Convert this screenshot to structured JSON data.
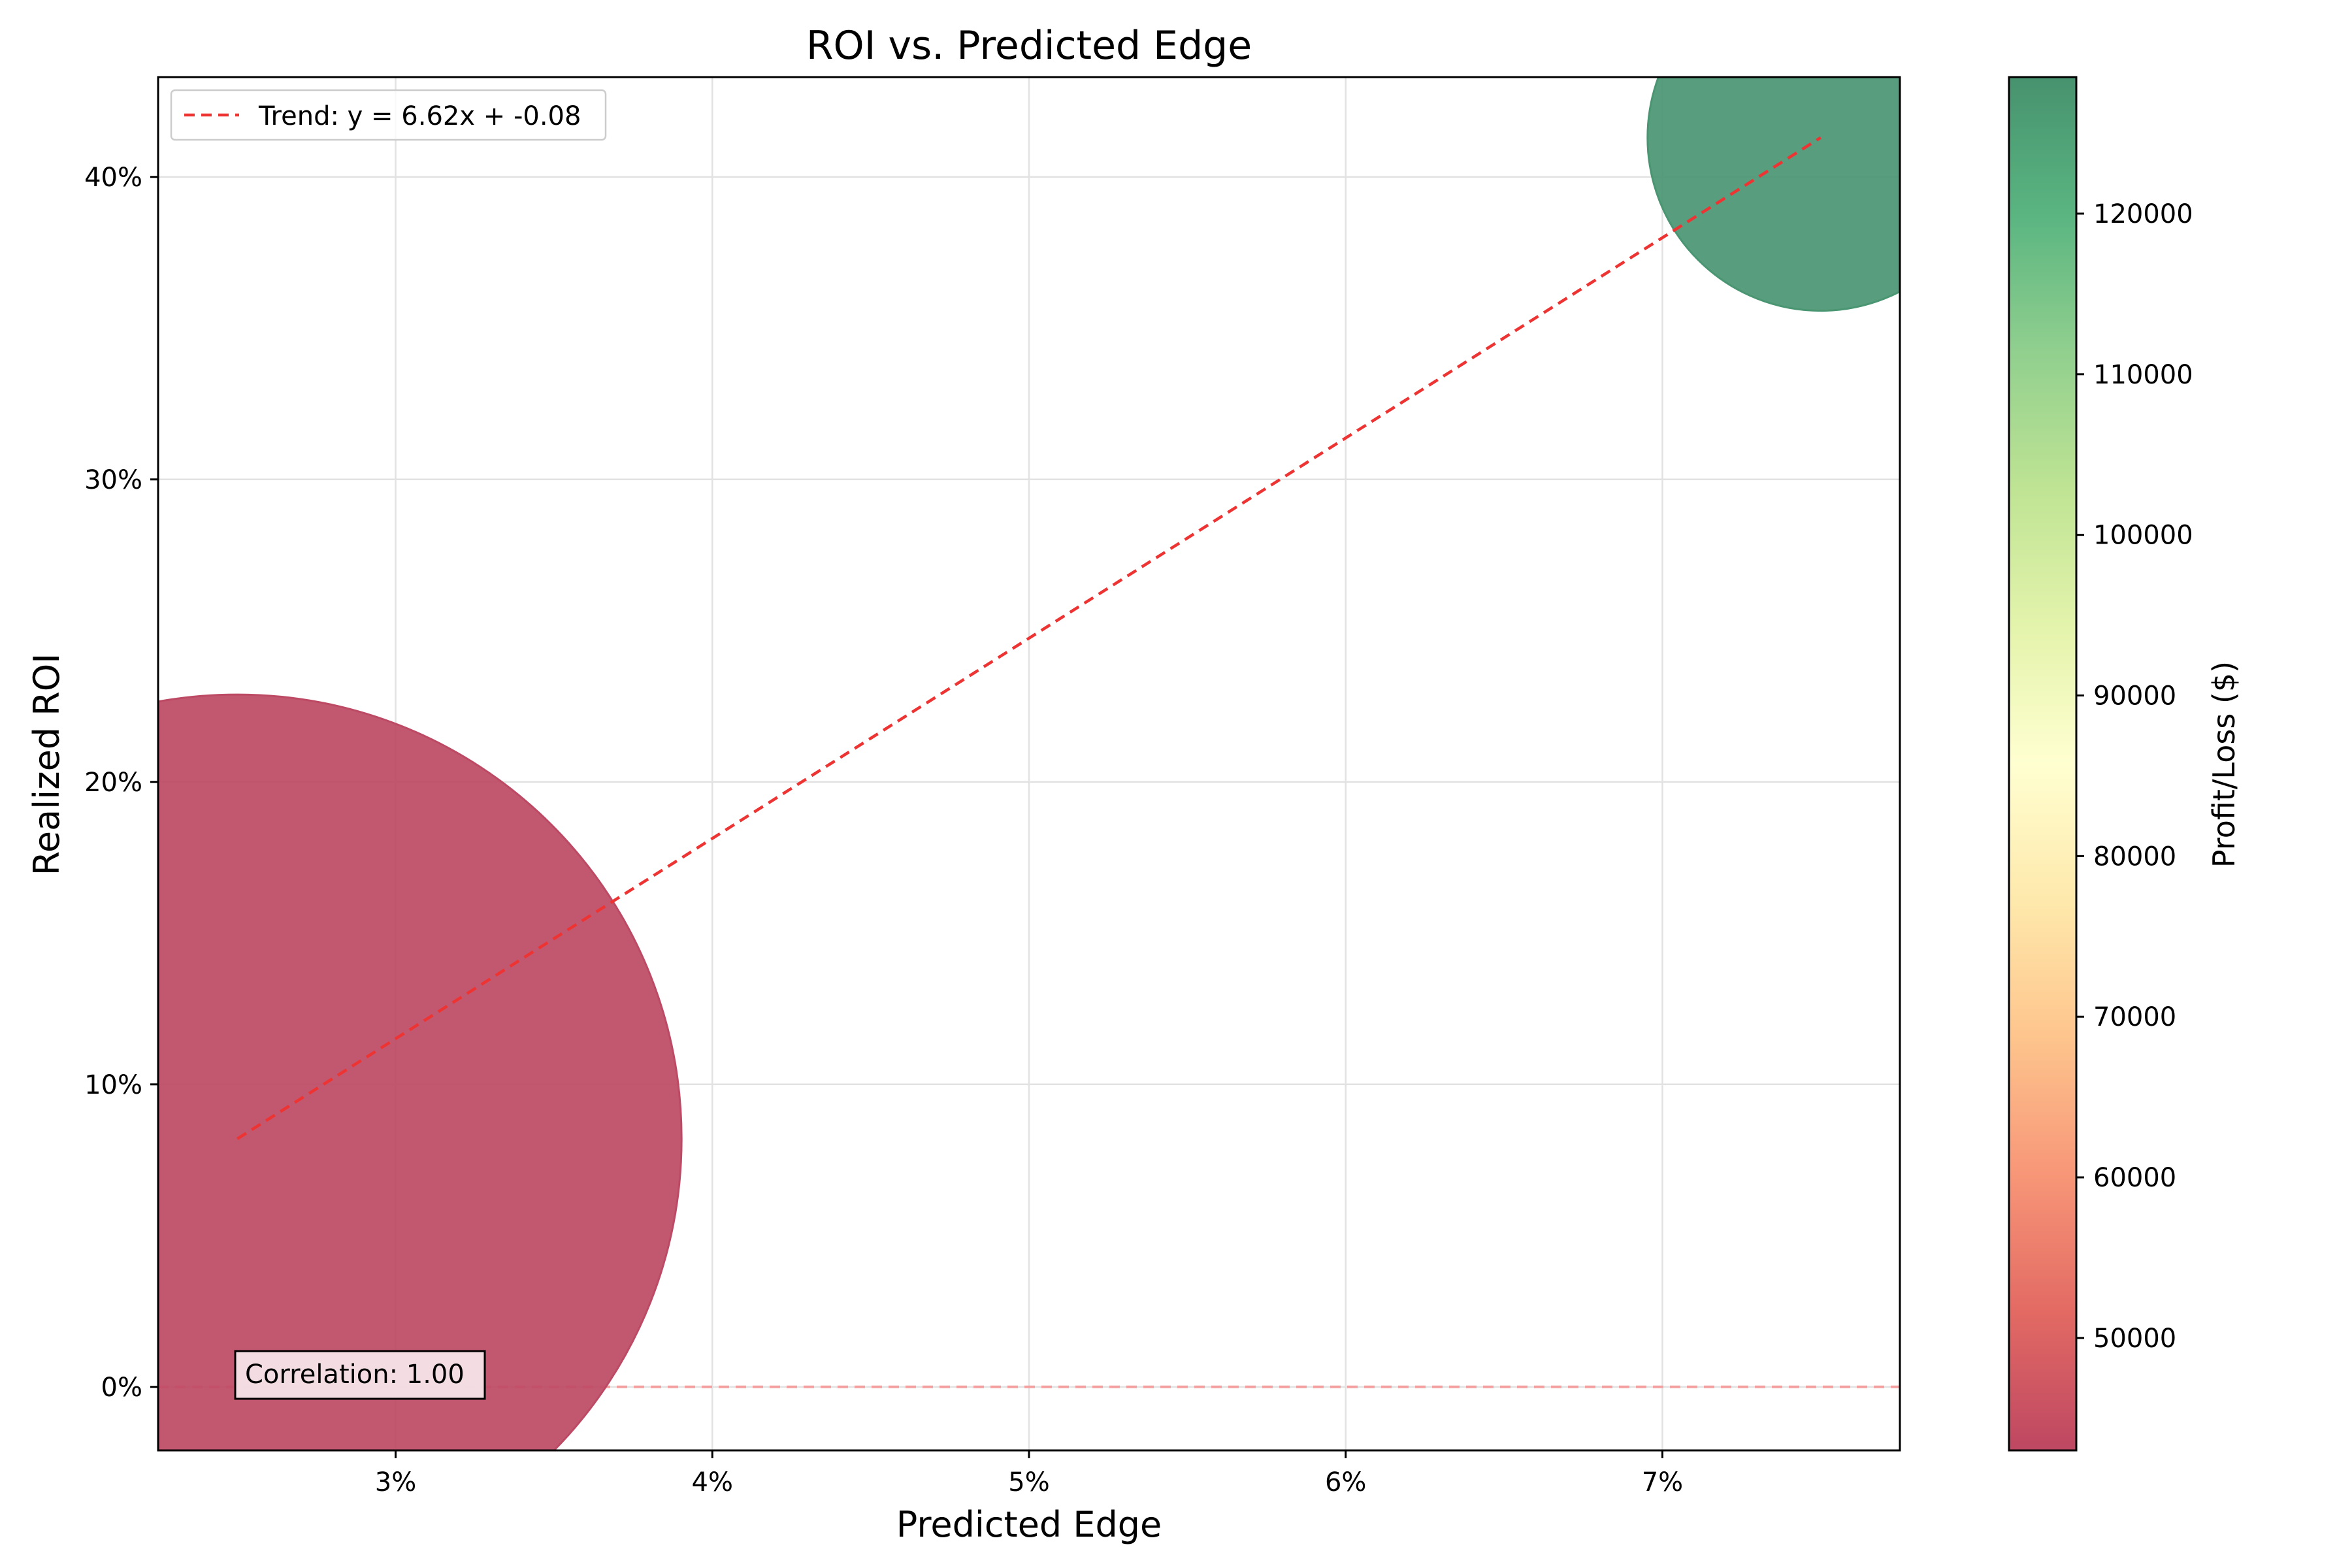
{
  "chart_data": {
    "type": "scatter",
    "title": "ROI vs. Predicted Edge",
    "xlabel": "Predicted Edge",
    "ylabel": "Realized ROI",
    "xlim": [
      0.0225,
      0.0775
    ],
    "ylim": [
      -0.021,
      0.433
    ],
    "xticks": [
      {
        "value": 0.03,
        "label": "3%"
      },
      {
        "value": 0.04,
        "label": "4%"
      },
      {
        "value": 0.05,
        "label": "5%"
      },
      {
        "value": 0.06,
        "label": "6%"
      },
      {
        "value": 0.07,
        "label": "7%"
      }
    ],
    "yticks": [
      {
        "value": 0.0,
        "label": "0%"
      },
      {
        "value": 0.1,
        "label": "10%"
      },
      {
        "value": 0.2,
        "label": "20%"
      },
      {
        "value": 0.3,
        "label": "30%"
      },
      {
        "value": 0.4,
        "label": "40%"
      }
    ],
    "grid": true,
    "points": [
      {
        "x": 0.025,
        "y": 0.082,
        "profit": 43000,
        "color": "#bd4a64"
      },
      {
        "x": 0.075,
        "y": 0.413,
        "profit": 128000,
        "color": "#4a9572"
      }
    ],
    "trend": {
      "label": "Trend: y = 6.62x + -0.08",
      "color": "#ee3333",
      "x_start": 0.025,
      "y_start": 0.082,
      "x_end": 0.075,
      "y_end": 0.413
    },
    "reference_line": {
      "y": 0.0,
      "color": "#f4a0a0"
    },
    "legend": {
      "placement": "top-left"
    },
    "annotation": "Correlation: 1.00",
    "colorbar": {
      "label": "Profit/Loss ($)",
      "range": [
        43000,
        128500
      ],
      "colormap": "RdYlGn",
      "ticks": [
        "50000",
        "60000",
        "70000",
        "80000",
        "90000",
        "100000",
        "110000",
        "120000"
      ]
    }
  }
}
